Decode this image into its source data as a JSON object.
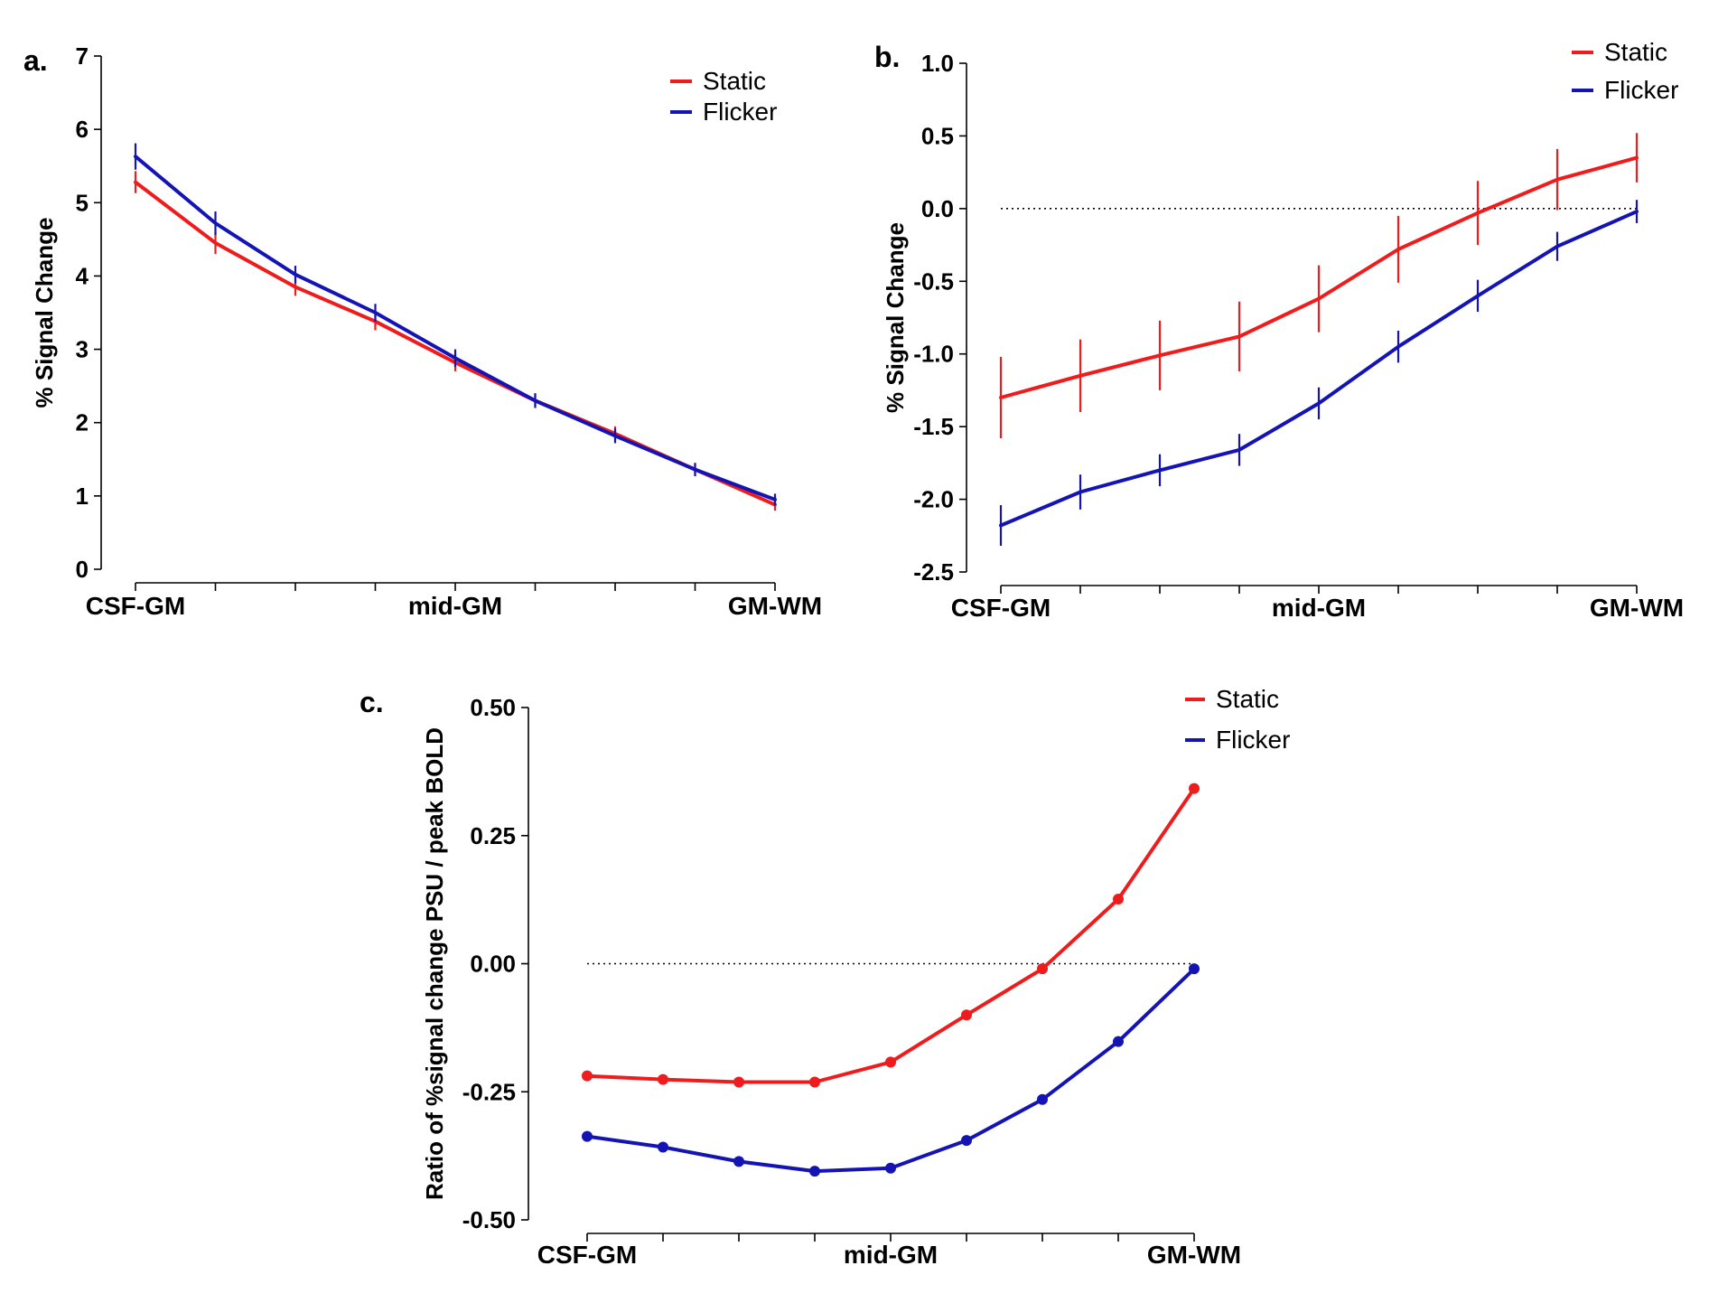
{
  "colors": {
    "static": "#ee1c1c",
    "flicker": "#1414b4"
  },
  "chart_data": [
    {
      "panel": "a.",
      "type": "line",
      "title": "",
      "ylabel": "% Signal Change",
      "xlabel": "",
      "ylim": [
        0,
        7
      ],
      "yticks": [
        0,
        1,
        2,
        3,
        4,
        5,
        6,
        7
      ],
      "ytick_labels": [
        "0",
        "1",
        "2",
        "3",
        "4",
        "5",
        "6",
        "7"
      ],
      "x_category_labels": [
        "CSF-GM",
        "mid-GM",
        "GM-WM"
      ],
      "x": [
        0,
        1,
        2,
        3,
        4,
        5,
        6,
        7,
        8
      ],
      "legend": [
        "Static",
        "Flicker"
      ],
      "legend_position": "top-right",
      "zero_line": false,
      "series": [
        {
          "name": "Static",
          "color_key": "static",
          "values": [
            5.28,
            4.45,
            3.85,
            3.38,
            2.82,
            2.3,
            1.85,
            1.36,
            0.88
          ],
          "errors": [
            0.15,
            0.15,
            0.12,
            0.12,
            0.12,
            0.1,
            0.1,
            0.09,
            0.08
          ]
        },
        {
          "name": "Flicker",
          "color_key": "flicker",
          "values": [
            5.63,
            4.72,
            4.02,
            3.5,
            2.88,
            2.3,
            1.82,
            1.36,
            0.95
          ],
          "errors": [
            0.18,
            0.16,
            0.12,
            0.12,
            0.12,
            0.1,
            0.1,
            0.09,
            0.08
          ]
        }
      ]
    },
    {
      "panel": "b.",
      "type": "line",
      "title": "",
      "ylabel": "% Signal Change",
      "xlabel": "",
      "ylim": [
        -2.5,
        1.0
      ],
      "yticks": [
        -2.5,
        -2.0,
        -1.5,
        -1.0,
        -0.5,
        0.0,
        0.5,
        1.0
      ],
      "ytick_labels": [
        "-2.5",
        "-2.0",
        "-1.5",
        "-1.0",
        "-0.5",
        "0.0",
        "0.5",
        "1.0"
      ],
      "x_category_labels": [
        "CSF-GM",
        "mid-GM",
        "GM-WM"
      ],
      "x": [
        0,
        1,
        2,
        3,
        4,
        5,
        6,
        7,
        8
      ],
      "legend": [
        "Static",
        "Flicker"
      ],
      "legend_position": "top-right",
      "zero_line": true,
      "series": [
        {
          "name": "Static",
          "color_key": "static",
          "values": [
            -1.3,
            -1.15,
            -1.01,
            -0.88,
            -0.62,
            -0.28,
            -0.03,
            0.2,
            0.35
          ],
          "errors": [
            0.28,
            0.25,
            0.24,
            0.24,
            0.23,
            0.23,
            0.22,
            0.21,
            0.17
          ]
        },
        {
          "name": "Flicker",
          "color_key": "flicker",
          "values": [
            -2.18,
            -1.95,
            -1.8,
            -1.66,
            -1.34,
            -0.95,
            -0.6,
            -0.26,
            -0.02
          ],
          "errors": [
            0.14,
            0.12,
            0.11,
            0.11,
            0.11,
            0.11,
            0.11,
            0.1,
            0.08
          ]
        }
      ]
    },
    {
      "panel": "c.",
      "type": "line",
      "title": "",
      "ylabel": "Ratio of %signal change PSU / peak BOLD",
      "xlabel": "",
      "ylim": [
        -0.5,
        0.5
      ],
      "yticks": [
        -0.5,
        -0.25,
        0.0,
        0.25,
        0.5
      ],
      "ytick_labels": [
        "-0.50",
        "-0.25",
        "0.00",
        "0.25",
        "0.50"
      ],
      "x_category_labels": [
        "CSF-GM",
        "mid-GM",
        "GM-WM"
      ],
      "x": [
        0,
        1,
        2,
        3,
        4,
        5,
        6,
        7,
        8
      ],
      "legend": [
        "Static",
        "Flicker"
      ],
      "legend_position": "top-right",
      "zero_line": true,
      "markers": true,
      "series": [
        {
          "name": "Static",
          "color_key": "static",
          "values": [
            -0.219,
            -0.226,
            -0.231,
            -0.231,
            -0.192,
            -0.1,
            -0.01,
            0.126,
            0.342
          ]
        },
        {
          "name": "Flicker",
          "color_key": "flicker",
          "values": [
            -0.337,
            -0.358,
            -0.386,
            -0.405,
            -0.399,
            -0.345,
            -0.265,
            -0.152,
            -0.01
          ]
        }
      ]
    }
  ]
}
